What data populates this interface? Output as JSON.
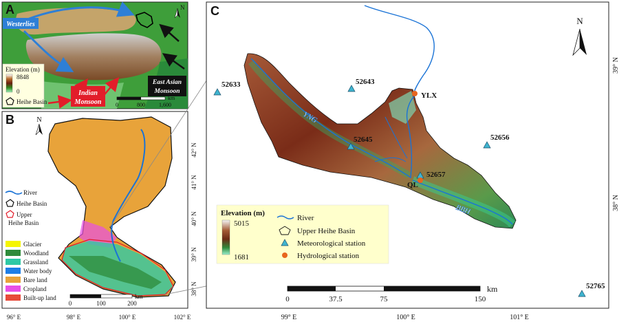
{
  "panels": {
    "a": {
      "letter": "A",
      "arrows": {
        "westerlies": "Westerlies",
        "indian": "Indian\nMonsoon",
        "east_asian": "East Asian\nMonsoon"
      },
      "legend": {
        "title": "Elevation (m)",
        "max": "8848",
        "min": "0",
        "basin": "Heihe Basin"
      },
      "scalebar": {
        "ticks": [
          "0",
          "800",
          "1,600"
        ],
        "unit": "km"
      },
      "north": "N"
    },
    "b": {
      "letter": "B",
      "north": "N",
      "legend_lines": [
        "River",
        "Heihe Basin",
        "Upper\nHeihe Basin"
      ],
      "landcover": [
        {
          "label": "Glacier",
          "color": "#f5f500"
        },
        {
          "label": "Woodland",
          "color": "#2e8b3a"
        },
        {
          "label": "Grassland",
          "color": "#2ec9a5"
        },
        {
          "label": "Water body",
          "color": "#1e7ee6"
        },
        {
          "label": "Bare land",
          "color": "#e8a33a"
        },
        {
          "label": "Cropland",
          "color": "#e84fe6"
        },
        {
          "label": "Built-up land",
          "color": "#e84a3a"
        }
      ],
      "scalebar": {
        "ticks": [
          "0",
          "100",
          "200"
        ],
        "unit": "km"
      },
      "lon_labels": [
        "96° E",
        "98° E",
        "100° E",
        "102° E"
      ],
      "lat_labels": [
        "42° N",
        "41° N",
        "40° N",
        "39° N",
        "38° N"
      ]
    },
    "c": {
      "letter": "C",
      "north": "N",
      "stations_met": [
        "52633",
        "52643",
        "52645",
        "52656",
        "52657",
        "52765"
      ],
      "stations_hyd": [
        "YLX",
        "QL"
      ],
      "rivers": [
        "YNG",
        "BBH"
      ],
      "legend": {
        "title": "Elevation (m)",
        "max": "5015",
        "min": "1681",
        "river": "River",
        "basin": "Upper Heihe Basin",
        "met": "Meteorological station",
        "hyd": "Hydrological station"
      },
      "scalebar": {
        "ticks": [
          "0",
          "37.5",
          "75",
          "150"
        ],
        "unit": "km"
      },
      "lon_labels": [
        "99° E",
        "100° E",
        "101° E"
      ],
      "lat_labels": [
        "39° N",
        "38° N"
      ]
    }
  },
  "colors": {
    "river": "#1a73d6",
    "met_station": "#3fb4cf",
    "hyd_station": "#e8651e",
    "westerlies_box": "#2e7fd6",
    "monsoon_box": "#e21d2a",
    "east_box": "#111111"
  }
}
